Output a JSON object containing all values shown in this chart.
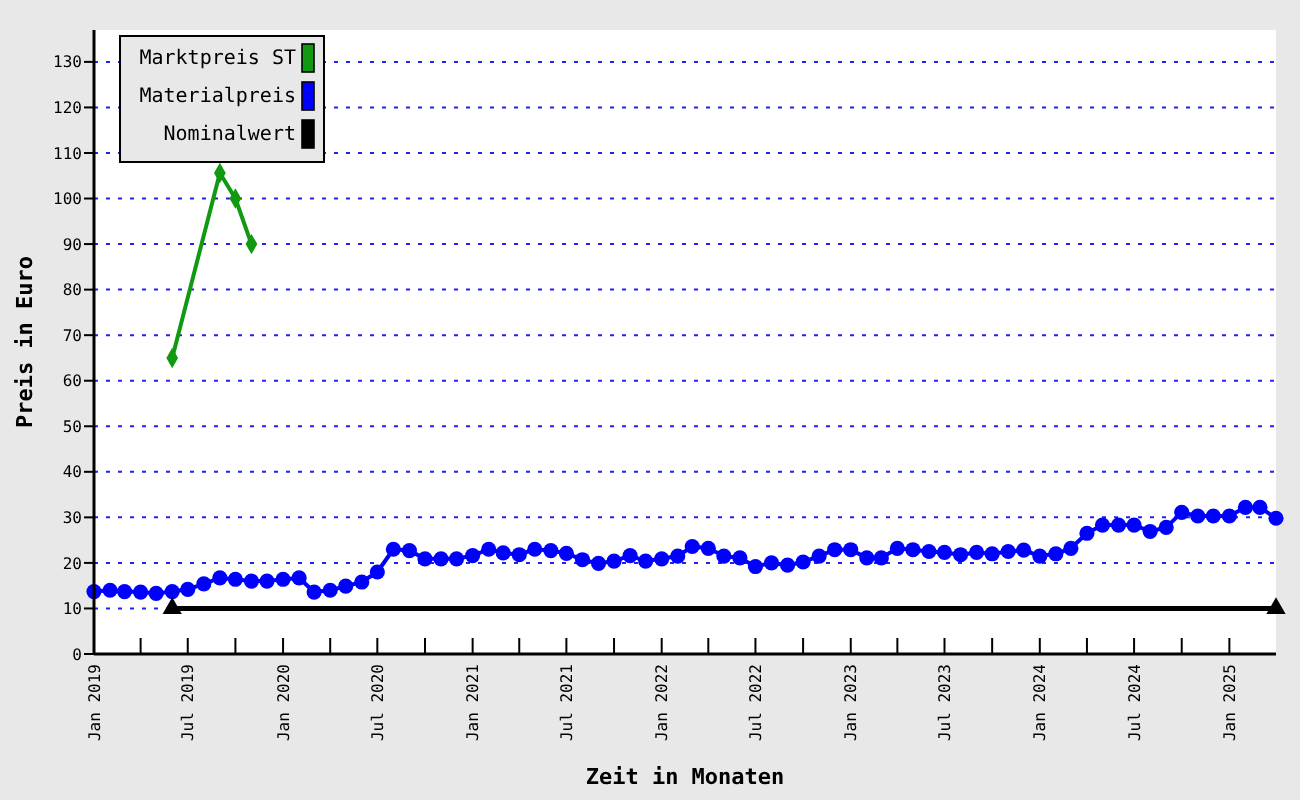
{
  "chart_data": {
    "type": "line",
    "xlabel": "Zeit in Monaten",
    "ylabel": "Preis in Euro",
    "xlim": [
      "2019-01",
      "2025-04"
    ],
    "xticks": [
      {
        "value": "2019-01",
        "label": "Jan 2019"
      },
      {
        "value": "2019-04",
        "label": null
      },
      {
        "value": "2019-07",
        "label": "Jul 2019"
      },
      {
        "value": "2019-10",
        "label": null
      },
      {
        "value": "2020-01",
        "label": "Jan 2020"
      },
      {
        "value": "2020-04",
        "label": null
      },
      {
        "value": "2020-07",
        "label": "Jul 2020"
      },
      {
        "value": "2020-10",
        "label": null
      },
      {
        "value": "2021-01",
        "label": "Jan 2021"
      },
      {
        "value": "2021-04",
        "label": null
      },
      {
        "value": "2021-07",
        "label": "Jul 2021"
      },
      {
        "value": "2021-10",
        "label": null
      },
      {
        "value": "2022-01",
        "label": "Jan 2022"
      },
      {
        "value": "2022-04",
        "label": null
      },
      {
        "value": "2022-07",
        "label": "Jul 2022"
      },
      {
        "value": "2022-10",
        "label": null
      },
      {
        "value": "2023-01",
        "label": "Jan 2023"
      },
      {
        "value": "2023-04",
        "label": null
      },
      {
        "value": "2023-07",
        "label": "Jul 2023"
      },
      {
        "value": "2023-10",
        "label": null
      },
      {
        "value": "2024-01",
        "label": "Jan 2024"
      },
      {
        "value": "2024-04",
        "label": null
      },
      {
        "value": "2024-07",
        "label": "Jul 2024"
      },
      {
        "value": "2024-10",
        "label": null
      },
      {
        "value": "2025-01",
        "label": "Jan 2025"
      }
    ],
    "ylim": [
      0,
      137
    ],
    "yticks": [
      0,
      10,
      20,
      30,
      40,
      50,
      60,
      70,
      80,
      90,
      100,
      110,
      120,
      130
    ],
    "grid": "y",
    "legend": "top left",
    "series": [
      {
        "name": "Marktpreis ST",
        "color": "#119911",
        "marker": "diamond",
        "x": [
          "2019-06",
          "2019-09",
          "2019-10",
          "2019-11"
        ],
        "values": [
          65,
          105.6,
          100,
          90
        ]
      },
      {
        "name": "Materialpreis",
        "color": "#0000ff",
        "marker": "circle",
        "x": [
          "2019-01",
          "2019-02",
          "2019-03",
          "2019-04",
          "2019-05",
          "2019-06",
          "2019-07",
          "2019-08",
          "2019-09",
          "2019-10",
          "2019-11",
          "2019-12",
          "2020-01",
          "2020-02",
          "2020-03",
          "2020-04",
          "2020-05",
          "2020-06",
          "2020-07",
          "2020-08",
          "2020-09",
          "2020-10",
          "2020-11",
          "2020-12",
          "2021-01",
          "2021-02",
          "2021-03",
          "2021-04",
          "2021-05",
          "2021-06",
          "2021-07",
          "2021-08",
          "2021-09",
          "2021-10",
          "2021-11",
          "2021-12",
          "2022-01",
          "2022-02",
          "2022-03",
          "2022-04",
          "2022-05",
          "2022-06",
          "2022-07",
          "2022-08",
          "2022-09",
          "2022-10",
          "2022-11",
          "2022-12",
          "2023-01",
          "2023-02",
          "2023-03",
          "2023-04",
          "2023-05",
          "2023-06",
          "2023-07",
          "2023-08",
          "2023-09",
          "2023-10",
          "2023-11",
          "2023-12",
          "2024-01",
          "2024-02",
          "2024-03",
          "2024-04",
          "2024-05",
          "2024-06",
          "2024-07",
          "2024-08",
          "2024-09",
          "2024-10",
          "2024-11",
          "2024-12",
          "2025-01",
          "2025-02",
          "2025-03",
          "2025-04"
        ],
        "values": [
          13.7,
          14,
          13.7,
          13.6,
          13.3,
          13.7,
          14.2,
          15.4,
          16.7,
          16.4,
          16,
          16,
          16.4,
          16.7,
          13.6,
          14,
          14.9,
          15.8,
          18,
          23,
          22.7,
          20.9,
          20.9,
          20.9,
          21.6,
          23,
          22.2,
          21.8,
          23,
          22.7,
          22.1,
          20.7,
          19.9,
          20.4,
          21.6,
          20.4,
          20.9,
          21.5,
          23.6,
          23.2,
          21.5,
          21.1,
          19.2,
          20,
          19.5,
          20.2,
          21.5,
          22.9,
          22.9,
          21.1,
          21.1,
          23.2,
          22.9,
          22.5,
          22.3,
          21.8,
          22.3,
          22,
          22.5,
          22.8,
          21.5,
          22,
          23.2,
          26.5,
          28.3,
          28.3,
          28.3,
          26.9,
          27.8,
          31.1,
          30.3,
          30.3,
          30.3,
          32.2,
          32.2,
          29.8
        ]
      },
      {
        "name": "Nominalwert",
        "color": "#000000",
        "marker": "triangle",
        "x": [
          "2019-06",
          "2025-04"
        ],
        "values": [
          10,
          10
        ]
      }
    ]
  }
}
